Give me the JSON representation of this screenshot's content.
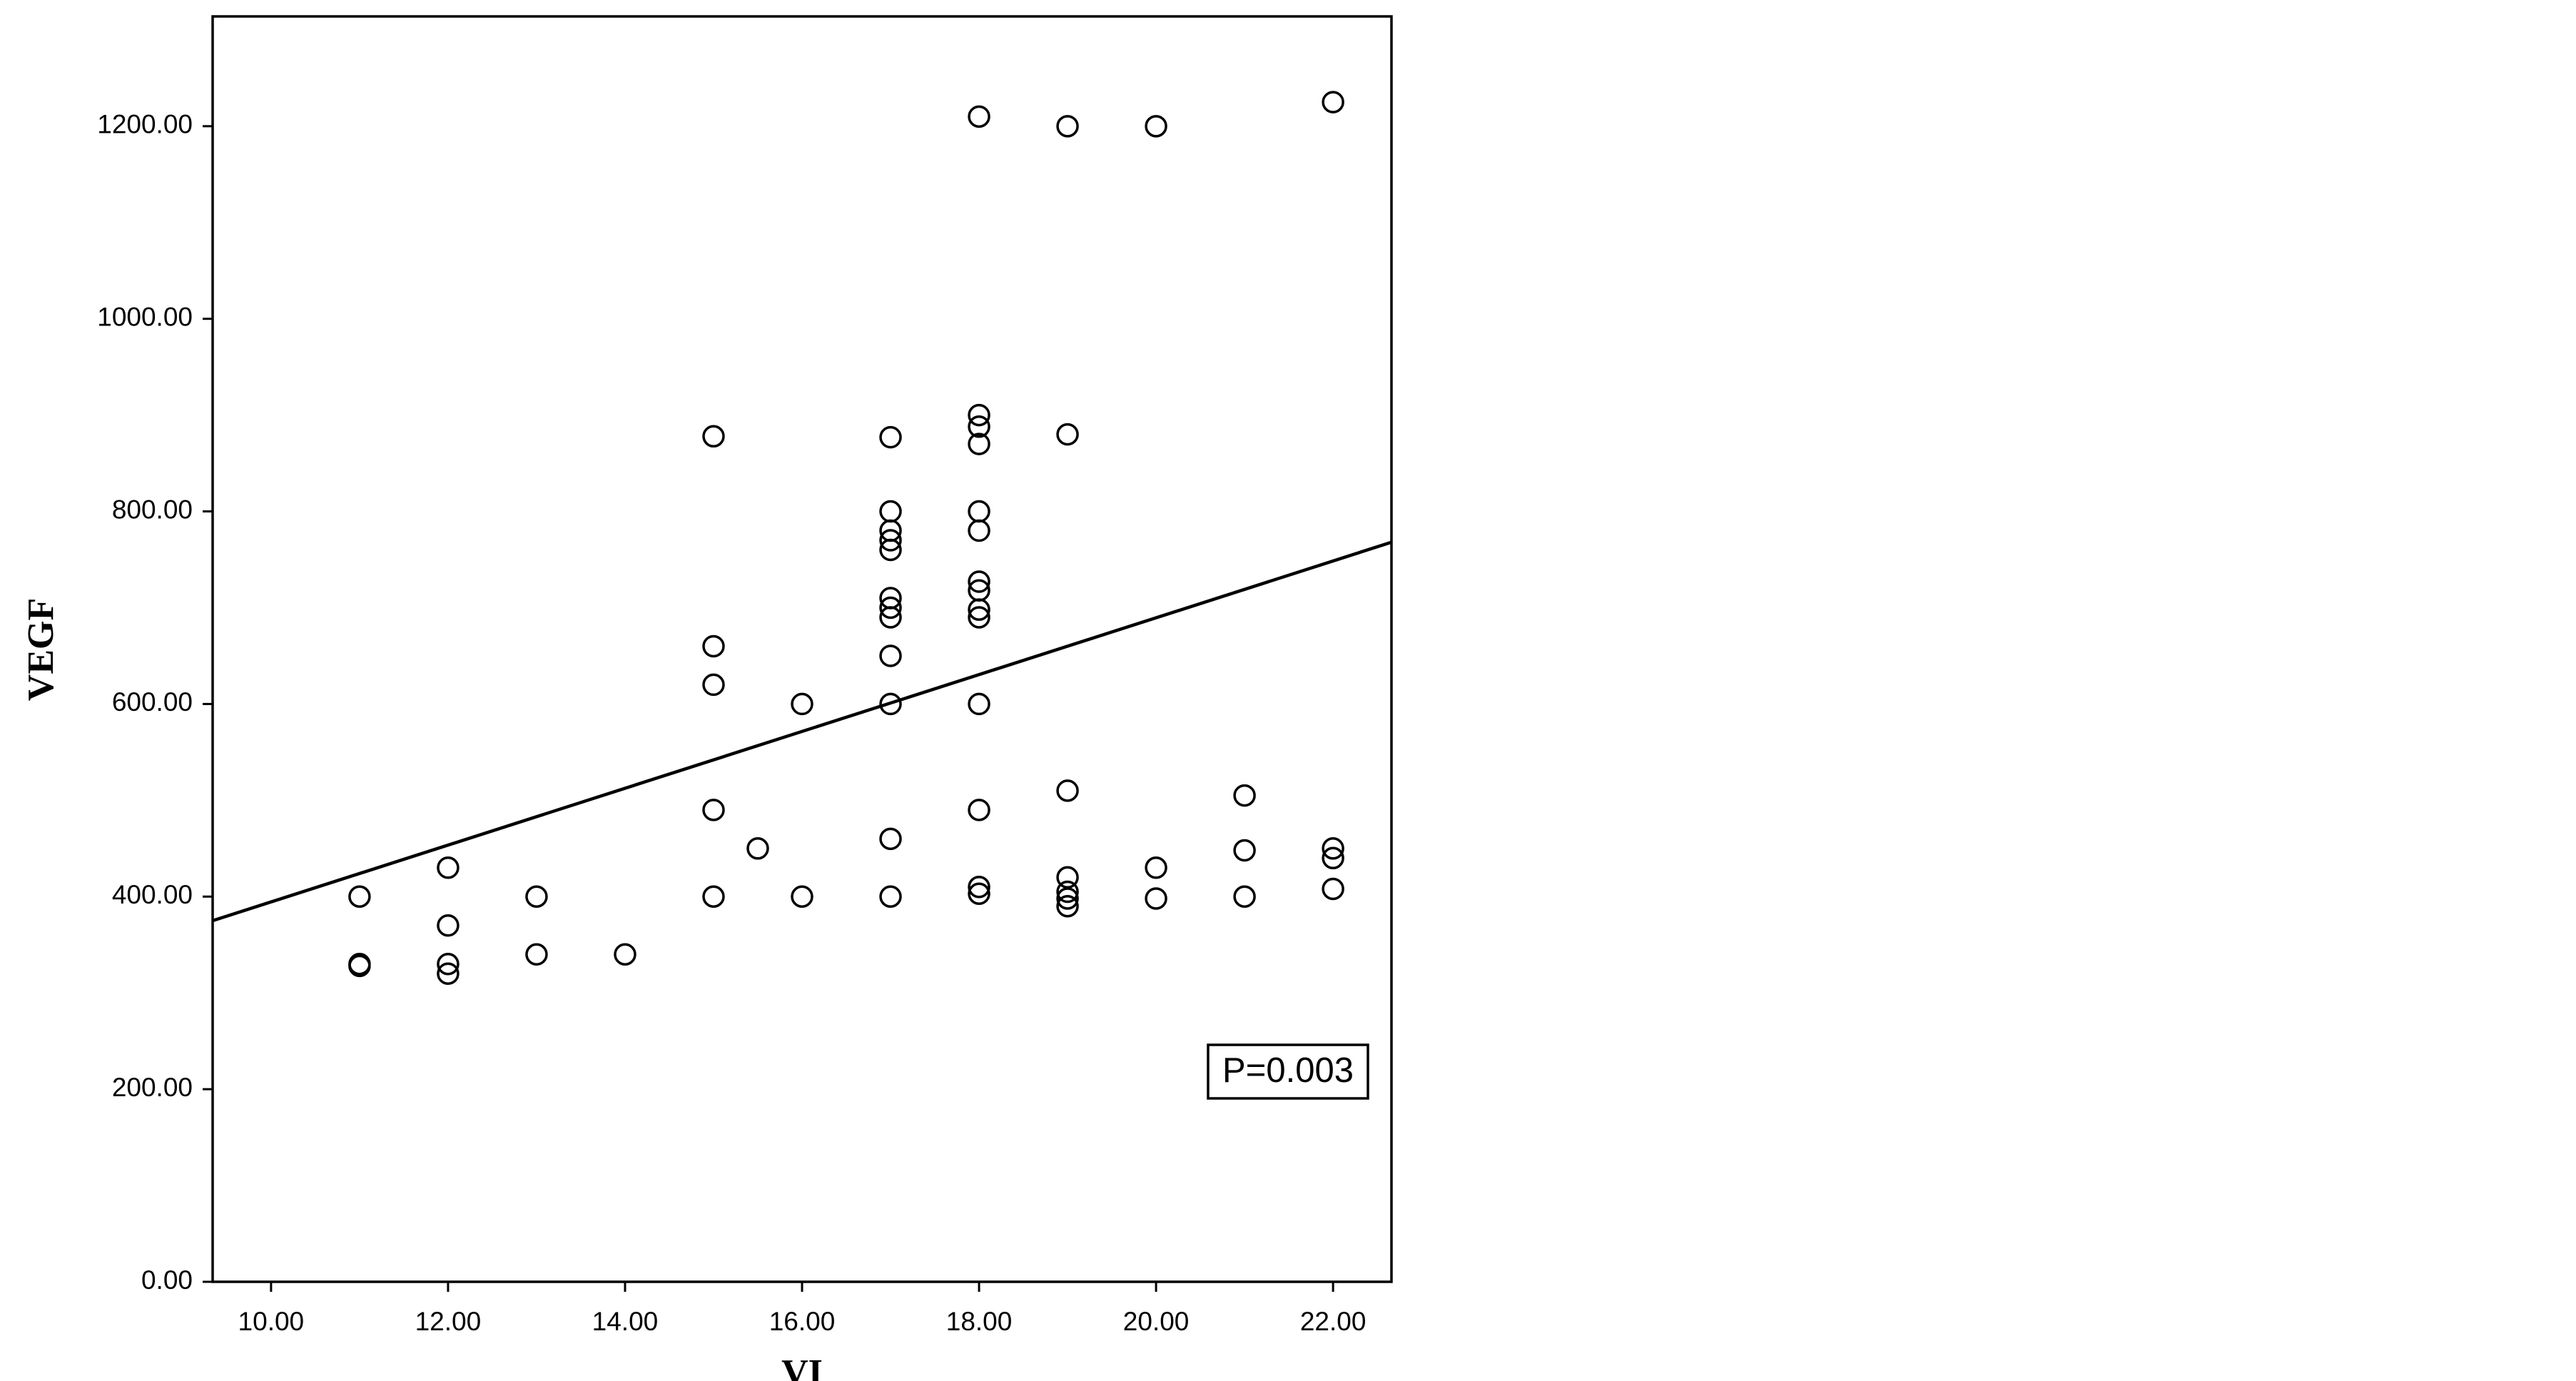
{
  "chart_data": {
    "type": "scatter",
    "x_label": "VI",
    "y_label": "VEGF",
    "annotation": "P=0.003",
    "color": "#000000",
    "xlim": [
      9.34,
      22.66
    ],
    "ylim": [
      0,
      1314
    ],
    "xticks": [
      {
        "value": 10,
        "label": "10.00"
      },
      {
        "value": 12,
        "label": "12.00"
      },
      {
        "value": 14,
        "label": "14.00"
      },
      {
        "value": 16,
        "label": "16.00"
      },
      {
        "value": 18,
        "label": "18.00"
      },
      {
        "value": 20,
        "label": "20.00"
      },
      {
        "value": 22,
        "label": "22.00"
      }
    ],
    "yticks": [
      {
        "value": 0,
        "label": "0.00"
      },
      {
        "value": 200,
        "label": "200.00"
      },
      {
        "value": 400,
        "label": "400.00"
      },
      {
        "value": 600,
        "label": "600.00"
      },
      {
        "value": 800,
        "label": "800.00"
      },
      {
        "value": 1000,
        "label": "1000.00"
      },
      {
        "value": 1200,
        "label": "1200.00"
      }
    ],
    "x": [
      11,
      11,
      11,
      12,
      12,
      12,
      12,
      13,
      13,
      14,
      15,
      15,
      15,
      15,
      15,
      15.5,
      16,
      16,
      17,
      17,
      17,
      17,
      17,
      17,
      17,
      17,
      17,
      17,
      17,
      17,
      18,
      18,
      18,
      18,
      18,
      18,
      18,
      18,
      18,
      18,
      18,
      18,
      18,
      18,
      19,
      19,
      19,
      19,
      19,
      19,
      19,
      20,
      20,
      20,
      21,
      21,
      21,
      22,
      22,
      22,
      22
    ],
    "values": [
      400,
      330,
      328,
      430,
      370,
      330,
      320,
      400,
      340,
      340,
      878,
      660,
      620,
      490,
      400,
      450,
      600,
      400,
      877,
      800,
      780,
      770,
      760,
      710,
      700,
      690,
      650,
      600,
      460,
      400,
      1210,
      900,
      888,
      870,
      800,
      780,
      727,
      718,
      698,
      690,
      600,
      490,
      410,
      403,
      1200,
      880,
      510,
      420,
      405,
      398,
      390,
      1200,
      430,
      398,
      505,
      448,
      400,
      1225,
      450,
      440,
      408
    ],
    "fit_line": {
      "x": [
        9.34,
        22.66
      ],
      "values": [
        375,
        768
      ]
    }
  }
}
